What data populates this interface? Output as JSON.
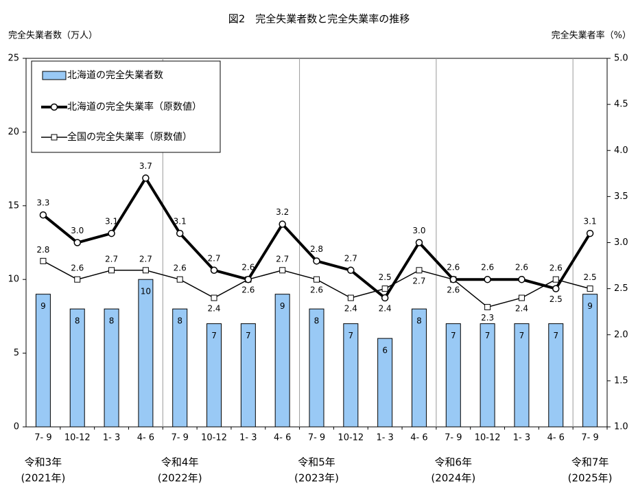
{
  "chart_data": {
    "type": "bar",
    "title": "図2　完全失業者数と完全失業率の推移",
    "ylabel": "完全失業者数（万人）",
    "y2label": "完全失業者率（%）",
    "categories": [
      "7- 9",
      "10-12",
      "1- 3",
      "4- 6",
      "7- 9",
      "10-12",
      "1- 3",
      "4- 6",
      "7- 9",
      "10-12",
      "1- 3",
      "4- 6",
      "7- 9",
      "10-12",
      "1- 3",
      "4- 6",
      "7- 9"
    ],
    "era_labels": [
      "令和3年",
      null,
      null,
      null,
      "令和4年",
      null,
      null,
      null,
      "令和5年",
      null,
      null,
      null,
      "令和6年",
      null,
      null,
      null,
      "令和7年"
    ],
    "year_labels": [
      "(2021年)",
      null,
      null,
      null,
      "(2022年)",
      null,
      null,
      null,
      "(2023年)",
      null,
      null,
      null,
      "(2024年)",
      null,
      null,
      null,
      "(2025年)"
    ],
    "ylim": [
      0,
      25
    ],
    "yticks": [
      0,
      5,
      10,
      15,
      20,
      25
    ],
    "y2lim": [
      1.0,
      5.0
    ],
    "y2ticks": [
      {
        "value": 1.0,
        "label": "1.0"
      },
      1.5,
      {
        "value": 2.0,
        "label": "2.0"
      },
      2.5,
      {
        "value": 3.0,
        "label": "3.0"
      },
      3.5,
      {
        "value": 4.0,
        "label": "4.0"
      },
      4.5,
      {
        "value": 5.0,
        "label": "5.0"
      }
    ],
    "series": [
      {
        "name": "北海道の完全失業者数",
        "type": "bar",
        "color": "#99c9f5",
        "values": [
          9,
          8,
          8,
          10,
          8,
          7,
          7,
          9,
          8,
          7,
          6,
          8,
          7,
          7,
          7,
          7,
          9
        ]
      },
      {
        "name": "北海道の完全失業率（原数値）",
        "type": "line",
        "axis": "y2",
        "color": "#000000",
        "marker": "circle",
        "values": [
          3.3,
          3.0,
          3.1,
          3.7,
          3.1,
          2.7,
          2.6,
          3.2,
          2.8,
          2.7,
          2.4,
          3.0,
          2.6,
          2.6,
          2.6,
          2.5,
          3.1
        ],
        "value_labels": [
          "3.3",
          "3.0",
          "3.1",
          "3.7",
          "3.1",
          "2.7",
          "2.6",
          "3.2",
          "2.8",
          "2.7",
          "2.4",
          "3.0",
          "2.6",
          "2.6",
          "2.6",
          "2.5",
          "3.1"
        ]
      },
      {
        "name": "全国の完全失業率（原数値）",
        "type": "line",
        "axis": "y2",
        "color": "#000000",
        "marker": "square",
        "values": [
          2.8,
          2.6,
          2.7,
          2.7,
          2.6,
          2.4,
          2.6,
          2.7,
          2.6,
          2.4,
          2.5,
          2.7,
          2.6,
          2.3,
          2.4,
          2.6,
          2.5
        ],
        "value_labels": [
          "2.8",
          "2.6",
          "2.7",
          "2.7",
          "2.6",
          "2.4",
          "2.6",
          "2.7",
          "2.6",
          "2.4",
          "2.5",
          "2.7",
          "2.6",
          "2.3",
          "2.4",
          "2.6",
          "2.5"
        ]
      }
    ]
  }
}
